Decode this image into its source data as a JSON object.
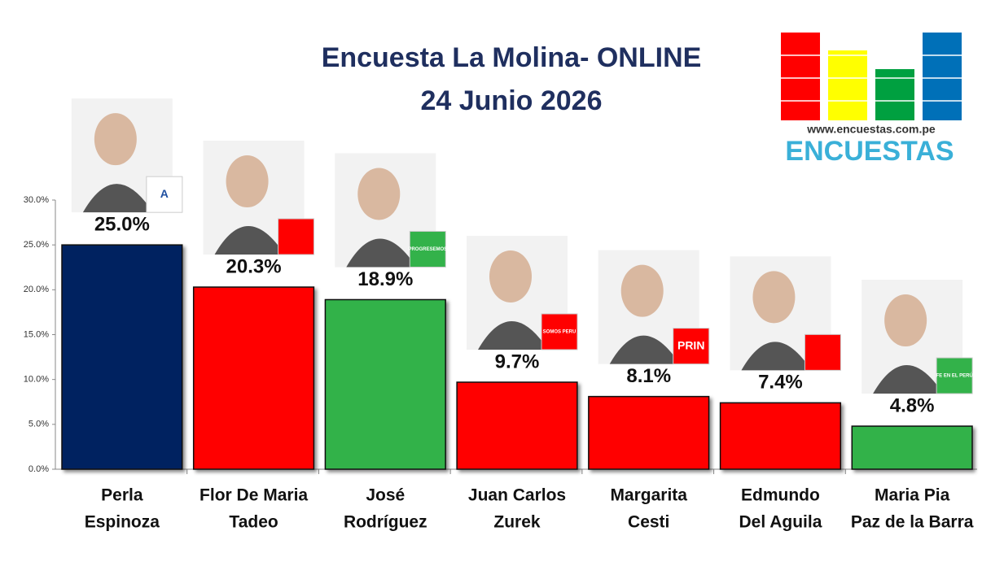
{
  "chart_data": {
    "type": "bar",
    "title": [
      "Encuesta La Molina- ONLINE",
      "24 Junio 2026"
    ],
    "brand": {
      "url": "www.encuestas.com.pe",
      "name": "ENCUESTAS"
    },
    "categories": [
      [
        "Perla",
        "Espinoza"
      ],
      [
        "Flor De Maria",
        "Tadeo"
      ],
      [
        "José",
        "Rodríguez"
      ],
      [
        "Juan Carlos",
        "Zurek"
      ],
      [
        "Margarita",
        "Cesti"
      ],
      [
        "Edmundo",
        "Del Aguila"
      ],
      [
        "Maria Pia",
        "Paz de la Barra"
      ]
    ],
    "values": [
      25.0,
      20.3,
      18.9,
      9.7,
      8.1,
      7.4,
      4.8
    ],
    "value_labels": [
      "25.0%",
      "20.3%",
      "18.9%",
      "9.7%",
      "8.1%",
      "7.4%",
      "4.8%"
    ],
    "colors": [
      "#002060",
      "#ff0000",
      "#33b24a",
      "#ff0000",
      "#ff0000",
      "#ff0000",
      "#33b24a"
    ],
    "party_logos": [
      "A",
      "",
      "PROGRESEMOS",
      "SOMOS PERU",
      "PRIN",
      "",
      "FE EN EL PERÚ"
    ],
    "ylim": [
      0,
      30
    ],
    "yticks": [
      {
        "value": 0,
        "label": "0.0%"
      },
      {
        "value": 5,
        "label": "5.0%"
      },
      {
        "value": 10,
        "label": "10.0%"
      },
      {
        "value": 15,
        "label": "15.0%"
      },
      {
        "value": 20,
        "label": "20.0%"
      },
      {
        "value": 25,
        "label": "25.0%"
      },
      {
        "value": 30,
        "label": "30.0%"
      }
    ]
  }
}
